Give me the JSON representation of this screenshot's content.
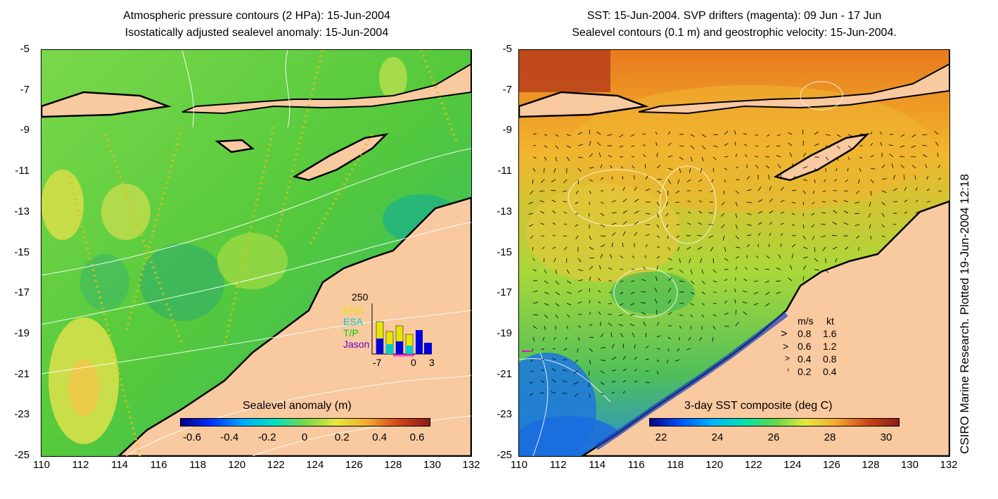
{
  "left_panel": {
    "title_line1": "Atmospheric pressure contours (2 HPa): 15-Jun-2004",
    "title_line2": "Isostatically adjusted sealevel anomaly: 15-Jun-2004",
    "y_ticks": [
      "-5",
      "-7",
      "-9",
      "-11",
      "-13",
      "-15",
      "-17",
      "-19",
      "-21",
      "-23",
      "-25"
    ],
    "x_ticks": [
      "110",
      "112",
      "114",
      "116",
      "118",
      "120",
      "122",
      "124",
      "126",
      "128",
      "130",
      "132"
    ],
    "colorbar": {
      "title": "Sealevel anomaly (m)",
      "ticks": [
        "-0.6",
        "-0.4",
        "-0.2",
        "0",
        "0.2",
        "0.4",
        "0.6"
      ]
    },
    "inset": {
      "max_label": "250",
      "missions": [
        {
          "name": "ERS",
          "color": "#e6e600"
        },
        {
          "name": "ESA",
          "color": "#00cccc"
        },
        {
          "name": "T/P",
          "color": "#00cc00"
        },
        {
          "name": "Jason",
          "color": "#6600cc"
        }
      ],
      "x_ticks": [
        "-7",
        "0",
        "3"
      ]
    }
  },
  "right_panel": {
    "title_line1": "SST: 15-Jun-2004. SVP drifters (magenta): 09 Jun - 17 Jun",
    "title_line2": "Sealevel contours (0.1 m) and geostrophic velocity: 15-Jun-2004.",
    "y_ticks": [
      "-5",
      "-7",
      "-9",
      "-11",
      "-13",
      "-15",
      "-17",
      "-19",
      "-21",
      "-23",
      "-25"
    ],
    "x_ticks": [
      "110",
      "112",
      "114",
      "116",
      "118",
      "120",
      "122",
      "124",
      "126",
      "128",
      "130",
      "132"
    ],
    "colorbar": {
      "title": "3-day SST composite (deg C)",
      "ticks": [
        "22",
        "24",
        "26",
        "28",
        "30"
      ]
    },
    "velocity_legend": {
      "header_ms": "m/s",
      "header_kt": "kt",
      "rows": [
        {
          "ms": "0.8",
          "kt": "1.6"
        },
        {
          "ms": "0.6",
          "kt": "1.2"
        },
        {
          "ms": "0.4",
          "kt": "0.8"
        },
        {
          "ms": "0.2",
          "kt": "0.4"
        }
      ]
    }
  },
  "credit": "CSIRO Marine Research. Plotted 19-Jun-2004 12:18",
  "colors": {
    "land": "#f9c9a0",
    "sla_green": "#3fc83f",
    "sst_orange": "#f2b52e"
  }
}
